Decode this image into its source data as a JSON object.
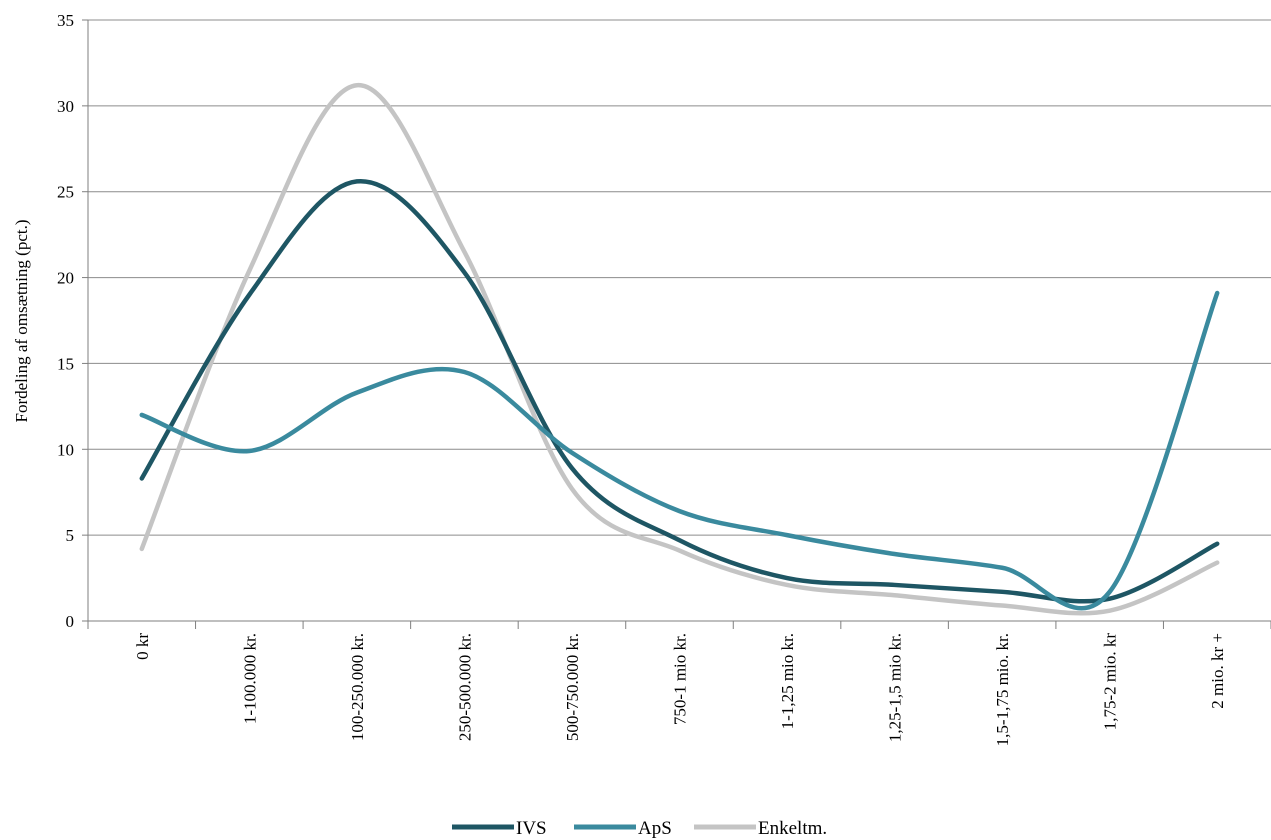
{
  "chart_data": {
    "type": "line",
    "smooth": true,
    "title": "",
    "xlabel": "",
    "ylabel": "Fordeling af omsætning (pct.)",
    "ylim": [
      0,
      35
    ],
    "yticks": [
      "0",
      "5",
      "10",
      "15",
      "20",
      "25",
      "30",
      "35"
    ],
    "grid": "horizontal",
    "legend": "bottom",
    "categories": [
      "0 kr",
      "1-100.000 kr.",
      "100-250.000 kr.",
      "250-500.000 kr.",
      "500-750.000 kr.",
      "750-1 mio kr.",
      "1-1,25 mio kr.",
      "1,25-1,5 mio kr.",
      "1,5-1,75 mio. kr.",
      "1,75-2 mio. kr",
      "2 mio. kr +"
    ],
    "series": [
      {
        "name": "IVS",
        "color": "#1e5664",
        "values": [
          8.3,
          19.0,
          25.6,
          20.3,
          8.9,
          4.7,
          2.5,
          2.1,
          1.7,
          1.3,
          4.5
        ]
      },
      {
        "name": "ApS",
        "color": "#3a8a9e",
        "values": [
          12.0,
          9.9,
          13.3,
          14.5,
          9.8,
          6.4,
          5.0,
          3.9,
          3.1,
          1.7,
          19.1
        ]
      },
      {
        "name": "Enkeltm.",
        "color": "#c4c4c4",
        "values": [
          4.2,
          20.4,
          31.2,
          21.5,
          7.7,
          4.1,
          2.1,
          1.5,
          0.9,
          0.6,
          3.4
        ]
      }
    ]
  }
}
